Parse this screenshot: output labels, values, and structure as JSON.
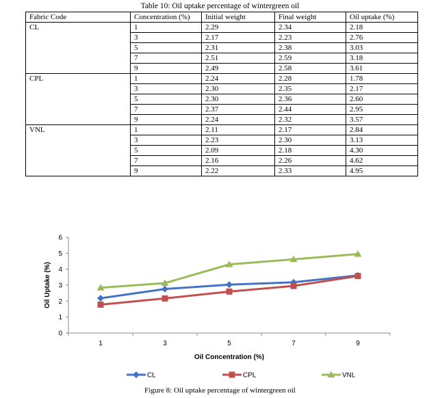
{
  "table": {
    "caption": "Table 10: Oil uptake percentage of wintergreen oil",
    "headers": [
      "Fabric Code",
      "Concentration (%)",
      "Initial weight",
      "Final weight",
      "Oil uptake (%)"
    ],
    "groups": [
      {
        "code": "CL",
        "rows": [
          [
            "1",
            "2.29",
            "2.34",
            "2.18"
          ],
          [
            "3",
            "2.17",
            "2.23",
            "2.76"
          ],
          [
            "5",
            "2.31",
            "2.38",
            "3.03"
          ],
          [
            "7",
            "2.51",
            "2.59",
            "3.18"
          ],
          [
            "9",
            "2.49",
            "2.58",
            "3.61"
          ]
        ]
      },
      {
        "code": "CPL",
        "rows": [
          [
            "1",
            "2.24",
            "2.28",
            "1.78"
          ],
          [
            "3",
            "2.30",
            "2.35",
            "2.17"
          ],
          [
            "5",
            "2.30",
            "2.36",
            "2.60"
          ],
          [
            "7",
            "2.37",
            "2.44",
            "2.95"
          ],
          [
            "9",
            "2.24",
            "2.32",
            "3.57"
          ]
        ]
      },
      {
        "code": "VNL",
        "rows": [
          [
            "1",
            "2.11",
            "2.17",
            "2.84"
          ],
          [
            "3",
            "2.23",
            "2.30",
            "3.13"
          ],
          [
            "5",
            "2.09",
            "2.18",
            "4.30"
          ],
          [
            "7",
            "2.16",
            "2.26",
            "4.62"
          ],
          [
            "9",
            "2.22",
            "2.33",
            "4.95"
          ]
        ]
      }
    ]
  },
  "chart_data": {
    "type": "line",
    "categories": [
      "1",
      "3",
      "5",
      "7",
      "9"
    ],
    "series": [
      {
        "name": "CL",
        "values": [
          2.18,
          2.76,
          3.03,
          3.18,
          3.61
        ],
        "color": "#4472C4",
        "marker": "diamond"
      },
      {
        "name": "CPL",
        "values": [
          1.78,
          2.17,
          2.6,
          2.95,
          3.57
        ],
        "color": "#C0504D",
        "marker": "square"
      },
      {
        "name": "VNL",
        "values": [
          2.84,
          3.13,
          4.3,
          4.62,
          4.95
        ],
        "color": "#9BBB59",
        "marker": "triangle"
      }
    ],
    "xlabel": "Oil Concentration (%)",
    "ylabel": "Oil Uptake (%)",
    "ylim": [
      0,
      6
    ],
    "yticks": [
      "0",
      "1",
      "2",
      "3",
      "4",
      "5",
      "6"
    ],
    "grid": false,
    "legend": "bottom"
  },
  "figure_caption": "Figure 8: Oil uptake percentage of wintergreen oil"
}
